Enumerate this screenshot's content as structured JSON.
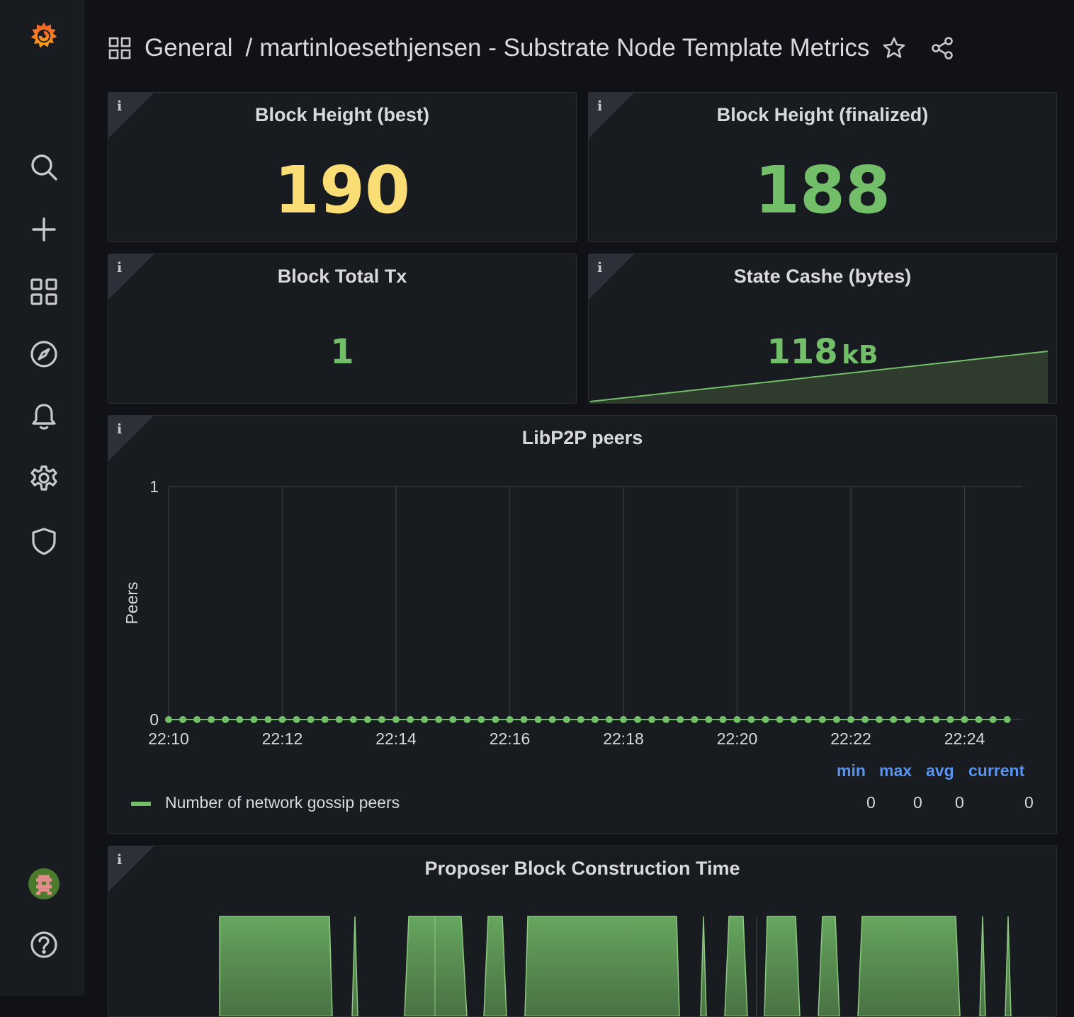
{
  "sidebar": {
    "icons": [
      "grafana-logo-icon",
      "search-icon",
      "plus-icon",
      "dashboards-icon",
      "explore-icon",
      "alerting-icon",
      "settings-icon",
      "shield-icon",
      "avatar",
      "help-icon"
    ]
  },
  "header": {
    "folder": "General",
    "separator": "/",
    "dashboard_title": "martinloesethjensen - Substrate Node Template Metrics"
  },
  "panels": {
    "best": {
      "title": "Block Height (best)",
      "value": "190",
      "color": "#fade75"
    },
    "finalized": {
      "title": "Block Height (finalized)",
      "value": "188",
      "color": "#73bf69"
    },
    "txs": {
      "title": "Block Total Tx",
      "value": "1",
      "color": "#73bf69"
    },
    "cache": {
      "title": "State Cashe (bytes)",
      "value": "118",
      "unit": "kB",
      "color": "#73bf69"
    },
    "peers": {
      "title": "LibP2P peers",
      "legend": {
        "headers": {
          "min": "min",
          "max": "max",
          "avg": "avg",
          "current": "current"
        },
        "series_name": "Number of network gossip peers",
        "values": {
          "min": "0",
          "max": "0",
          "avg": "0",
          "current": "0"
        }
      }
    },
    "proposer": {
      "title": "Proposer Block Construction Time"
    }
  },
  "chart_data": [
    {
      "type": "line",
      "title": "LibP2P peers",
      "ylabel": "Peers",
      "ylim": [
        0,
        1
      ],
      "yticks": [
        "0",
        "1"
      ],
      "xticks": [
        "22:10",
        "22:12",
        "22:14",
        "22:16",
        "22:18",
        "22:20",
        "22:22",
        "22:24"
      ],
      "grid": true,
      "legend": "bottom",
      "series": [
        {
          "name": "Number of network gossip peers",
          "color": "#73bf69",
          "x_start": "22:10",
          "x_end": "22:24:45",
          "point_count": 60,
          "constant_value": 0
        }
      ]
    },
    {
      "type": "area",
      "title": "State Cashe (bytes)",
      "series": [
        {
          "color": "#73bf69",
          "trend": "increasing",
          "current_value": "118 kB"
        }
      ]
    },
    {
      "type": "area",
      "title": "Proposer Block Construction Time",
      "series": [
        {
          "color": "#73bf69"
        }
      ]
    }
  ]
}
